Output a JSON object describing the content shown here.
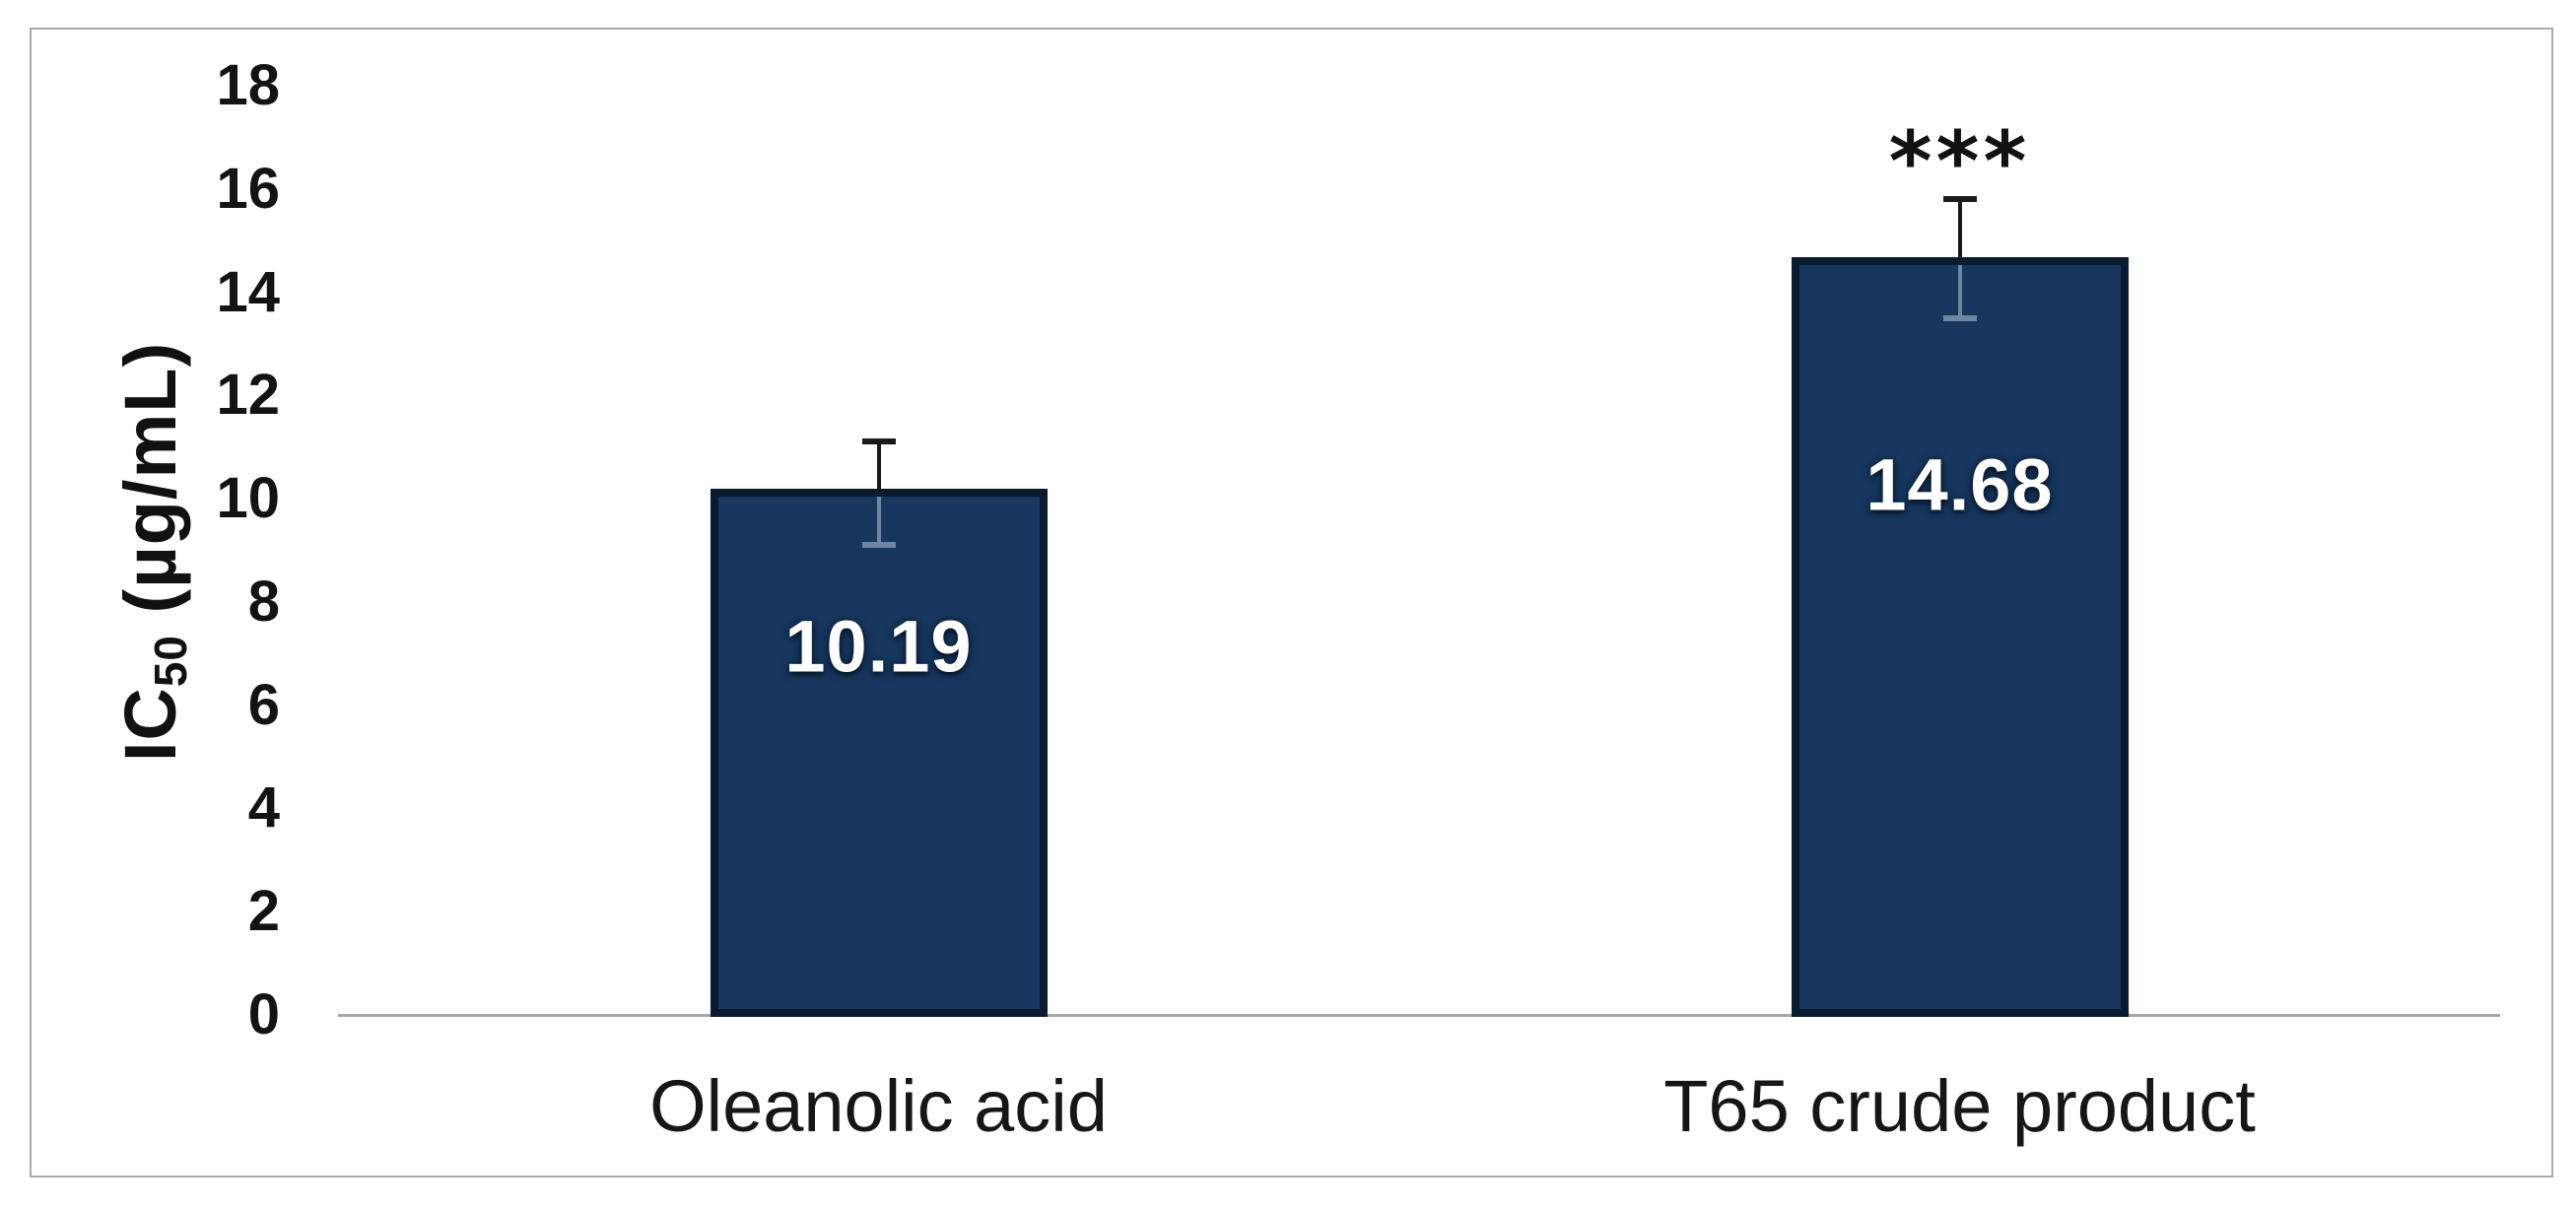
{
  "figure": {
    "background": "#ffffff",
    "border_color": "#ababab"
  },
  "chart_data": {
    "type": "bar",
    "title": "",
    "ylabel_prefix": "IC",
    "ylabel_sub": "50",
    "ylabel_suffix": " (µg/mL)",
    "ylabel_full": "IC50 (µg/mL)",
    "xlabel": "",
    "categories": [
      "Oleanolic acid",
      "T65 crude product"
    ],
    "values": [
      10.19,
      14.68
    ],
    "value_labels": [
      "10.19",
      "14.68"
    ],
    "error_low": [
      9.1,
      13.5
    ],
    "error_high": [
      11.1,
      15.8
    ],
    "annotations": [
      {
        "category_index": 1,
        "text": "***"
      }
    ],
    "yticks": [
      0,
      2,
      4,
      6,
      8,
      10,
      12,
      14,
      16,
      18
    ],
    "ylim": [
      0,
      18
    ],
    "grid": false,
    "legend": null,
    "bar_color": "#17375f",
    "bar_border_color": "#0a1a2f",
    "error_color_above_bar": "#1a1a1a",
    "error_color_inside_bar": "#6f87a3",
    "axis_line_color": "#a6a6a6",
    "tick_text_color": "#131313",
    "category_text_color": "#161616",
    "value_label_color": "#ffffff"
  }
}
